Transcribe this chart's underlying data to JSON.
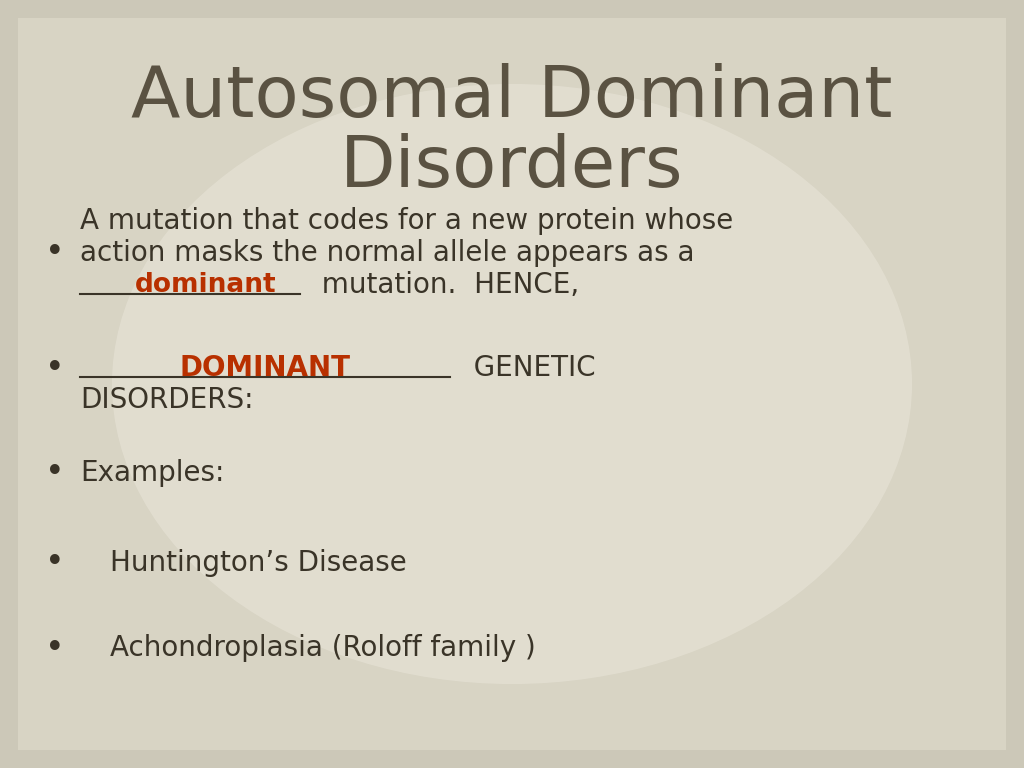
{
  "title_line1": "Autosomal Dominant",
  "title_line2": "Disorders",
  "title_color": "#5a5242",
  "title_fontsize": 52,
  "background_color": "#ccc8b8",
  "bg_center_color": "#dedad0",
  "bullet_color": "#3a3428",
  "bullet_fontsize": 20,
  "red_color": "#b83000",
  "bullet1_l1": "A mutation that codes for a new protein whose",
  "bullet1_l2": "action masks the normal allele appears as a",
  "bullet1_dominant": "dominant",
  "bullet1_suffix": "  mutation.  HENCE,",
  "bullet2_dominant": "DOMINANT",
  "bullet2_suffix": "  GENETIC",
  "bullet2_line2": "DISORDERS:",
  "bullet3": "Examples:",
  "bullet4": "Huntington’s Disease",
  "bullet5": "Achondroplasia (Roloff family )"
}
